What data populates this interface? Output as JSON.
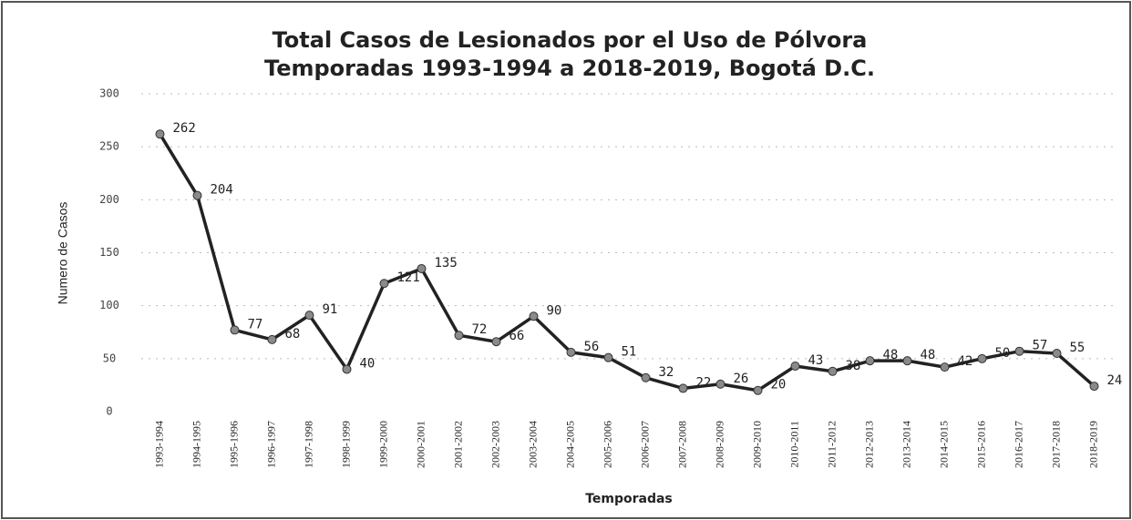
{
  "chart_data": {
    "type": "line",
    "title": [
      "Total Casos de Lesionados por el Uso de Pólvora",
      "Temporadas 1993-1994 a 2018-2019, Bogotá D.C."
    ],
    "x_label": "Temporadas",
    "y_label": "Numero de Casos",
    "categories": [
      "1993-1994",
      "1994-1995",
      "1995-1996",
      "1996-1997",
      "1997-1998",
      "1998-1999",
      "1999-2000",
      "2000-2001",
      "2001-2002",
      "2002-2003",
      "2003-2004",
      "2004-2005",
      "2005-2006",
      "2006-2007",
      "2007-2008",
      "2008-2009",
      "2009-2010",
      "2010-2011",
      "2011-2012",
      "2012-2013",
      "2013-2014",
      "2014-2015",
      "2015-2016",
      "2016-2017",
      "2017-2018",
      "2018-2019"
    ],
    "series": [
      {
        "name": "Total Casos",
        "color": "#222222",
        "marker_color": "#8a8a8a",
        "values": [
          262,
          204,
          77,
          68,
          91,
          40,
          121,
          135,
          72,
          66,
          90,
          56,
          51,
          32,
          22,
          26,
          20,
          43,
          38,
          48,
          48,
          42,
          50,
          57,
          55,
          24
        ]
      }
    ],
    "ylim": [
      0,
      300
    ],
    "yticks": [
      0,
      50,
      100,
      150,
      200,
      250,
      300
    ],
    "grid": true
  }
}
